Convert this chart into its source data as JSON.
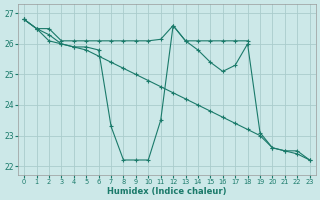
{
  "xlabel": "Humidex (Indice chaleur)",
  "xlim": [
    -0.5,
    23.5
  ],
  "ylim": [
    21.7,
    27.3
  ],
  "yticks": [
    22,
    23,
    24,
    25,
    26,
    27
  ],
  "xticks": [
    0,
    1,
    2,
    3,
    4,
    5,
    6,
    7,
    8,
    9,
    10,
    11,
    12,
    13,
    14,
    15,
    16,
    17,
    18,
    19,
    20,
    21,
    22,
    23
  ],
  "bg_color": "#cce8e8",
  "grid_color": "#aacccc",
  "line_color": "#1a7a6a",
  "line1_x": [
    0,
    1,
    2,
    3,
    4,
    5,
    6,
    7,
    8,
    9,
    10,
    11,
    12,
    13,
    14,
    15,
    16,
    17,
    18
  ],
  "line1_y": [
    26.8,
    26.5,
    26.5,
    26.1,
    26.1,
    26.1,
    26.1,
    26.1,
    26.1,
    26.1,
    26.1,
    26.15,
    26.6,
    26.1,
    26.1,
    26.1,
    26.1,
    26.1,
    26.1
  ],
  "line2_x": [
    0,
    1,
    2,
    3,
    4,
    5,
    6,
    7,
    8,
    9,
    10,
    11,
    12,
    13,
    14,
    15,
    16,
    17,
    18,
    19,
    20,
    21,
    22,
    23
  ],
  "line2_y": [
    26.8,
    26.5,
    26.1,
    26.0,
    25.9,
    25.9,
    25.8,
    23.3,
    22.2,
    22.2,
    22.2,
    23.5,
    26.6,
    26.1,
    25.8,
    25.4,
    25.1,
    25.3,
    26.0,
    23.1,
    22.6,
    22.5,
    22.5,
    22.2
  ],
  "line3_x": [
    0,
    1,
    2,
    3,
    4,
    5,
    6,
    7,
    8,
    9,
    10,
    11,
    12,
    13,
    14,
    15,
    16,
    17,
    18,
    19,
    20,
    21,
    22,
    23
  ],
  "line3_y": [
    26.8,
    26.5,
    26.3,
    26.0,
    25.9,
    25.8,
    25.6,
    25.4,
    25.2,
    25.0,
    24.8,
    24.6,
    24.4,
    24.2,
    24.0,
    23.8,
    23.6,
    23.4,
    23.2,
    23.0,
    22.6,
    22.5,
    22.4,
    22.2
  ]
}
